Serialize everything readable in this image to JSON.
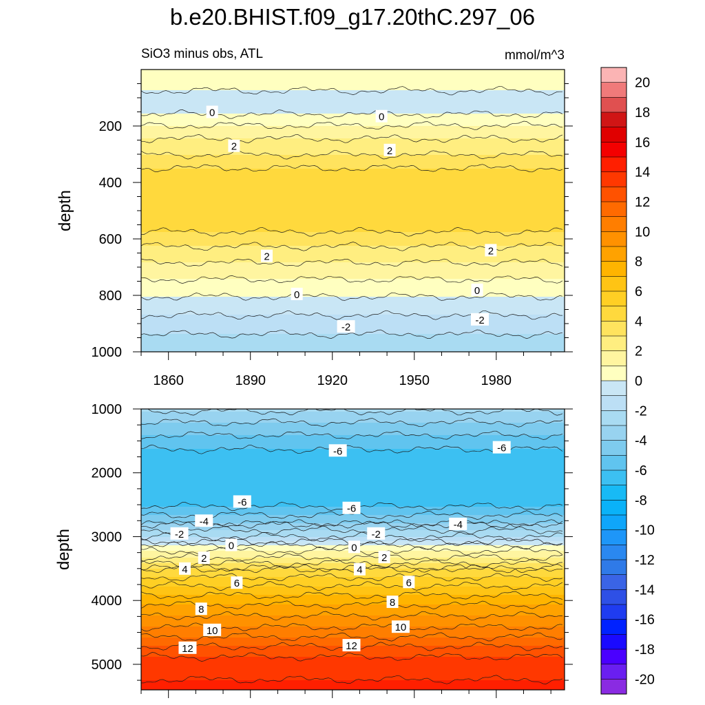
{
  "figure": {
    "title": "b.e20.BHIST.f09_g17.20thC.297_06",
    "left_subtitle": "SiO3 minus obs, ATL",
    "right_subtitle": "mmol/m^3"
  },
  "chart_data": [
    {
      "type": "heatmap",
      "name": "upper",
      "xlabel": "",
      "ylabel": "depth",
      "xlim": [
        1850,
        2005
      ],
      "ylim": [
        0,
        1000
      ],
      "y_reversed": true,
      "xticks": [
        1860,
        1890,
        1920,
        1950,
        1980
      ],
      "xtick_labels": [
        "1860",
        "1890",
        "1920",
        "1950",
        "1980"
      ],
      "yticks": [
        200,
        400,
        600,
        800,
        1000
      ],
      "ytick_labels": [
        "200",
        "400",
        "600",
        "800",
        "1000"
      ],
      "contour_interval": 1,
      "profile": [
        {
          "depth": 0,
          "value": 0.5
        },
        {
          "depth": 50,
          "value": 0.4
        },
        {
          "depth": 100,
          "value": -0.4
        },
        {
          "depth": 150,
          "value": -0.2
        },
        {
          "depth": 175,
          "value": 0.4
        },
        {
          "depth": 210,
          "value": 1.3
        },
        {
          "depth": 260,
          "value": 2.3
        },
        {
          "depth": 320,
          "value": 3.3
        },
        {
          "depth": 370,
          "value": 4.5
        },
        {
          "depth": 470,
          "value": 4.7
        },
        {
          "depth": 560,
          "value": 4.3
        },
        {
          "depth": 610,
          "value": 3.3
        },
        {
          "depth": 660,
          "value": 2.4
        },
        {
          "depth": 720,
          "value": 1.4
        },
        {
          "depth": 790,
          "value": 0.2
        },
        {
          "depth": 840,
          "value": -0.5
        },
        {
          "depth": 900,
          "value": -1.5
        },
        {
          "depth": 960,
          "value": -2.3
        },
        {
          "depth": 1000,
          "value": -2.8
        }
      ],
      "contour_labels": [
        {
          "x": 1876,
          "y": 150,
          "text": "0"
        },
        {
          "x": 1938,
          "y": 165,
          "text": "0"
        },
        {
          "x": 1884,
          "y": 270,
          "text": "2"
        },
        {
          "x": 1941,
          "y": 285,
          "text": "2"
        },
        {
          "x": 1896,
          "y": 660,
          "text": "2"
        },
        {
          "x": 1978,
          "y": 640,
          "text": "2"
        },
        {
          "x": 1907,
          "y": 795,
          "text": "0"
        },
        {
          "x": 1973,
          "y": 780,
          "text": "0"
        },
        {
          "x": 1925,
          "y": 910,
          "text": "-2"
        },
        {
          "x": 1974,
          "y": 885,
          "text": "-2"
        }
      ]
    },
    {
      "type": "heatmap",
      "name": "lower",
      "xlabel": "",
      "ylabel": "depth",
      "xlim": [
        1850,
        2005
      ],
      "ylim": [
        1000,
        5400
      ],
      "y_reversed": true,
      "xticks": [
        1860,
        1890,
        1920,
        1950,
        1980
      ],
      "xtick_labels": [
        "",
        "",
        "",
        "",
        ""
      ],
      "yticks": [
        1000,
        2000,
        3000,
        4000,
        5000
      ],
      "ytick_labels": [
        "1000",
        "2000",
        "3000",
        "4000",
        "5000"
      ],
      "contour_interval": 1,
      "profile": [
        {
          "depth": 1000,
          "value": -2.8
        },
        {
          "depth": 1300,
          "value": -4.5
        },
        {
          "depth": 1700,
          "value": -6.3
        },
        {
          "depth": 2100,
          "value": -6.8
        },
        {
          "depth": 2500,
          "value": -6.2
        },
        {
          "depth": 2800,
          "value": -4.0
        },
        {
          "depth": 3050,
          "value": -1.5
        },
        {
          "depth": 3150,
          "value": 0.3
        },
        {
          "depth": 3350,
          "value": 2.2
        },
        {
          "depth": 3500,
          "value": 4.0
        },
        {
          "depth": 3800,
          "value": 6.2
        },
        {
          "depth": 4100,
          "value": 8.2
        },
        {
          "depth": 4450,
          "value": 10.2
        },
        {
          "depth": 4750,
          "value": 12.2
        },
        {
          "depth": 5000,
          "value": 13.7
        },
        {
          "depth": 5400,
          "value": 14.2
        }
      ],
      "contour_labels": [
        {
          "x": 1922,
          "y": 1650,
          "text": "-6"
        },
        {
          "x": 1982,
          "y": 1600,
          "text": "-6"
        },
        {
          "x": 1887,
          "y": 2450,
          "text": "-6"
        },
        {
          "x": 1927,
          "y": 2550,
          "text": "-6"
        },
        {
          "x": 1873,
          "y": 2750,
          "text": "-4"
        },
        {
          "x": 1966,
          "y": 2800,
          "text": "-4"
        },
        {
          "x": 1864,
          "y": 2950,
          "text": "-2"
        },
        {
          "x": 1936,
          "y": 2950,
          "text": "-2"
        },
        {
          "x": 1883,
          "y": 3130,
          "text": "0"
        },
        {
          "x": 1928,
          "y": 3160,
          "text": "0"
        },
        {
          "x": 1873,
          "y": 3330,
          "text": "2"
        },
        {
          "x": 1939,
          "y": 3320,
          "text": "2"
        },
        {
          "x": 1866,
          "y": 3500,
          "text": "4"
        },
        {
          "x": 1930,
          "y": 3510,
          "text": "4"
        },
        {
          "x": 1885,
          "y": 3720,
          "text": "6"
        },
        {
          "x": 1948,
          "y": 3710,
          "text": "6"
        },
        {
          "x": 1872,
          "y": 4130,
          "text": "8"
        },
        {
          "x": 1942,
          "y": 4020,
          "text": "8"
        },
        {
          "x": 1876,
          "y": 4460,
          "text": "10"
        },
        {
          "x": 1945,
          "y": 4410,
          "text": "10"
        },
        {
          "x": 1867,
          "y": 4740,
          "text": "12"
        },
        {
          "x": 1927,
          "y": 4700,
          "text": "12"
        }
      ]
    },
    {
      "type": "colorbar",
      "name": "colorbar",
      "levels": [
        -20,
        -19,
        -18,
        -17,
        -16,
        -15,
        -14,
        -13,
        -12,
        -11,
        -10,
        -9,
        -8,
        -7,
        -6,
        -5,
        -4,
        -3,
        -2,
        -1,
        0,
        1,
        2,
        3,
        4,
        5,
        6,
        7,
        8,
        9,
        10,
        11,
        12,
        13,
        14,
        15,
        16,
        17,
        18,
        19,
        20
      ],
      "colors": [
        "#8a2be2",
        "#6a1ff0",
        "#4a00ff",
        "#1a0aff",
        "#0022ff",
        "#1f3cf0",
        "#2e50e6",
        "#3a64e6",
        "#2f7ae8",
        "#2a88f0",
        "#1e96f8",
        "#0fa6fa",
        "#0ab2f8",
        "#18baf5",
        "#3cc0f2",
        "#60c4ef",
        "#7ecbee",
        "#98d3f0",
        "#a9dbf2",
        "#bcdff5",
        "#c9e6f5",
        "#ffffc0",
        "#fff5a0",
        "#ffee80",
        "#ffe35e",
        "#ffd93d",
        "#ffcf24",
        "#ffc414",
        "#ffb400",
        "#ffa200",
        "#ff9100",
        "#ff7e00",
        "#ff6a00",
        "#ff5200",
        "#ff3800",
        "#ff1f00",
        "#f40000",
        "#e00000",
        "#d01515",
        "#e05050",
        "#f07a7a",
        "#fbb4b4"
      ],
      "tick_labels": [
        "20",
        "18",
        "16",
        "14",
        "12",
        "10",
        "8",
        "6",
        "4",
        "2",
        "0",
        "-2",
        "-4",
        "-6",
        "-8",
        "-10",
        "-12",
        "-14",
        "-16",
        "-18",
        "-20"
      ]
    }
  ]
}
